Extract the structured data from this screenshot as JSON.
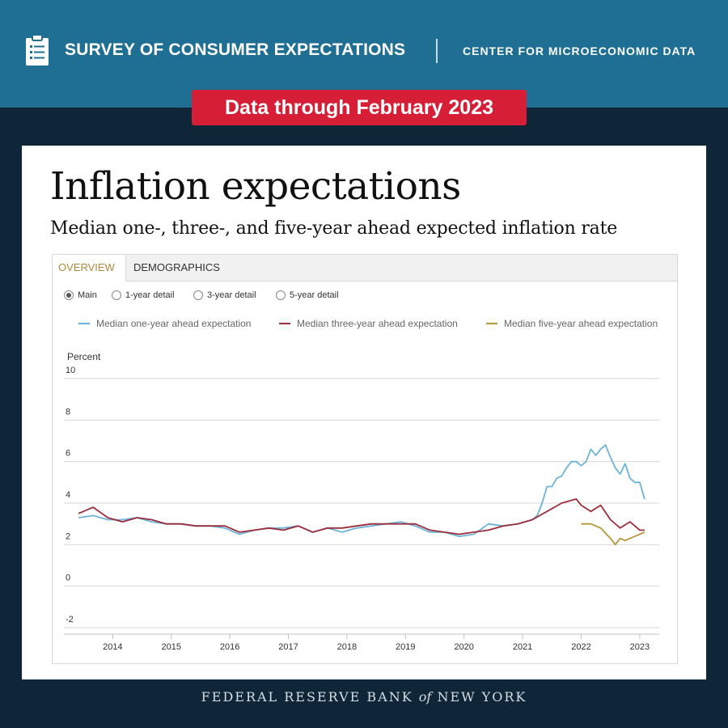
{
  "header": {
    "survey_title": "SURVEY OF CONSUMER EXPECTATIONS",
    "center_name": "CENTER FOR MICROECONOMIC DATA",
    "badge": "Data through February 2023",
    "icon": "clipboard-icon"
  },
  "card": {
    "title": "Inflation expectations",
    "subtitle": "Median one-, three-, and five-year ahead expected inflation rate"
  },
  "tabs": [
    {
      "label": "OVERVIEW",
      "active": true
    },
    {
      "label": "DEMOGRAPHICS",
      "active": false
    }
  ],
  "radios": [
    {
      "label": "Main",
      "checked": true
    },
    {
      "label": "1-year detail",
      "checked": false
    },
    {
      "label": "3-year detail",
      "checked": false
    },
    {
      "label": "5-year detail",
      "checked": false
    }
  ],
  "footer": {
    "prefix": "FEDERAL RESERVE BANK",
    "of": "of",
    "suffix": "NEW YORK"
  },
  "chart_data": {
    "type": "line",
    "title": "",
    "ylabel": "Percent",
    "xlabel": "",
    "ylim": [
      -2,
      10
    ],
    "yticks": [
      10,
      8,
      6,
      4,
      2,
      0,
      -2
    ],
    "xticks": [
      "2014",
      "2015",
      "2016",
      "2017",
      "2018",
      "2019",
      "2020",
      "2021",
      "2022",
      "2023"
    ],
    "grid": true,
    "legend_position": "top",
    "series": [
      {
        "name": "Median one-year ahead expectation",
        "color": "#6db3d9",
        "x": [
          "2013-06",
          "2013-09",
          "2013-12",
          "2014-03",
          "2014-06",
          "2014-09",
          "2014-12",
          "2015-03",
          "2015-06",
          "2015-09",
          "2015-12",
          "2016-03",
          "2016-06",
          "2016-09",
          "2016-12",
          "2017-03",
          "2017-06",
          "2017-09",
          "2017-12",
          "2018-03",
          "2018-06",
          "2018-09",
          "2018-12",
          "2019-03",
          "2019-06",
          "2019-09",
          "2019-12",
          "2020-03",
          "2020-06",
          "2020-09",
          "2020-12",
          "2021-03",
          "2021-04",
          "2021-05",
          "2021-06",
          "2021-07",
          "2021-08",
          "2021-09",
          "2021-10",
          "2021-11",
          "2021-12",
          "2022-01",
          "2022-02",
          "2022-03",
          "2022-04",
          "2022-05",
          "2022-06",
          "2022-07",
          "2022-08",
          "2022-09",
          "2022-10",
          "2022-11",
          "2022-12",
          "2023-01",
          "2023-02"
        ],
        "y": [
          3.3,
          3.4,
          3.2,
          3.2,
          3.3,
          3.1,
          3.0,
          3.0,
          2.9,
          2.9,
          2.8,
          2.5,
          2.7,
          2.8,
          2.8,
          2.9,
          2.6,
          2.8,
          2.6,
          2.8,
          2.9,
          3.0,
          3.1,
          2.9,
          2.6,
          2.6,
          2.4,
          2.5,
          3.0,
          2.9,
          3.0,
          3.2,
          3.4,
          4.0,
          4.8,
          4.8,
          5.2,
          5.3,
          5.7,
          6.0,
          6.0,
          5.8,
          6.0,
          6.6,
          6.3,
          6.6,
          6.8,
          6.2,
          5.7,
          5.4,
          5.9,
          5.2,
          5.0,
          5.0,
          4.2
        ]
      },
      {
        "name": "Median three-year ahead expectation",
        "color": "#9b2d3c",
        "x": [
          "2013-06",
          "2013-09",
          "2013-12",
          "2014-03",
          "2014-06",
          "2014-09",
          "2014-12",
          "2015-03",
          "2015-06",
          "2015-09",
          "2015-12",
          "2016-03",
          "2016-06",
          "2016-09",
          "2016-12",
          "2017-03",
          "2017-06",
          "2017-09",
          "2017-12",
          "2018-03",
          "2018-06",
          "2018-09",
          "2018-12",
          "2019-03",
          "2019-06",
          "2019-09",
          "2019-12",
          "2020-03",
          "2020-06",
          "2020-09",
          "2020-12",
          "2021-03",
          "2021-06",
          "2021-09",
          "2021-12",
          "2022-01",
          "2022-03",
          "2022-05",
          "2022-07",
          "2022-09",
          "2022-11",
          "2023-01",
          "2023-02"
        ],
        "y": [
          3.5,
          3.8,
          3.3,
          3.1,
          3.3,
          3.2,
          3.0,
          3.0,
          2.9,
          2.9,
          2.9,
          2.6,
          2.7,
          2.8,
          2.7,
          2.9,
          2.6,
          2.8,
          2.8,
          2.9,
          3.0,
          3.0,
          3.0,
          3.0,
          2.7,
          2.6,
          2.5,
          2.6,
          2.7,
          2.9,
          3.0,
          3.2,
          3.6,
          4.0,
          4.2,
          3.9,
          3.6,
          3.9,
          3.2,
          2.8,
          3.1,
          2.7,
          2.7
        ]
      },
      {
        "name": "Median five-year ahead expectation",
        "color": "#b8963c",
        "x": [
          "2022-01",
          "2022-03",
          "2022-05",
          "2022-07",
          "2022-08",
          "2022-09",
          "2022-10",
          "2022-11",
          "2022-12",
          "2023-01",
          "2023-02"
        ],
        "y": [
          3.0,
          3.0,
          2.8,
          2.3,
          2.0,
          2.3,
          2.2,
          2.3,
          2.4,
          2.5,
          2.6
        ]
      }
    ]
  }
}
